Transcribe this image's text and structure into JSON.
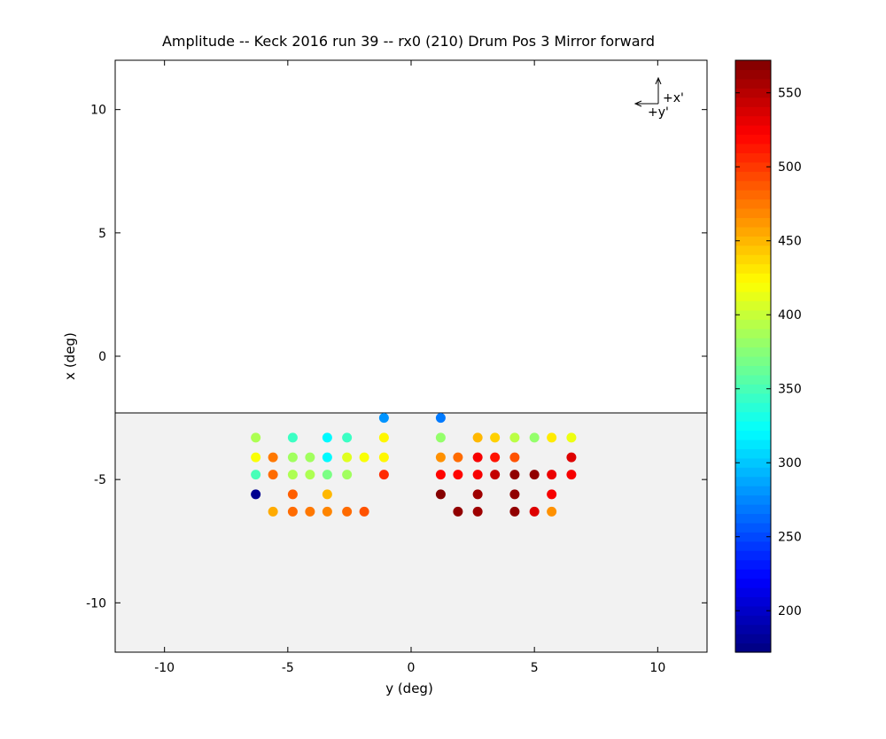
{
  "chart_data": {
    "type": "scatter",
    "title": "Amplitude -- Keck 2016 run 39 -- rx0 (210) Drum Pos 3 Mirror forward",
    "xlabel": "y (deg)",
    "ylabel": "x (deg)",
    "xlim": [
      -12,
      12
    ],
    "ylim": [
      -12,
      12
    ],
    "xticks": [
      "-10",
      "-5",
      "0",
      "5",
      "10"
    ],
    "yticks": [
      "10",
      "5",
      "0",
      "-5",
      "-10"
    ],
    "shaded_region": {
      "y_from": -12,
      "y_to": -2.3,
      "color": "#f2f2f2"
    },
    "orientation_marker": {
      "x_label": "+x'",
      "y_label": "+y'"
    },
    "colorbar": {
      "range": [
        172,
        572
      ],
      "ticks": [
        "200",
        "250",
        "300",
        "350",
        "400",
        "450",
        "500",
        "550"
      ],
      "colormap": "jet"
    },
    "points": [
      {
        "x": -1.1,
        "y": -2.5,
        "v": 280
      },
      {
        "x": 1.2,
        "y": -2.5,
        "v": 270
      },
      {
        "x": -6.3,
        "y": -3.3,
        "v": 390
      },
      {
        "x": -4.8,
        "y": -3.3,
        "v": 345
      },
      {
        "x": -3.4,
        "y": -3.3,
        "v": 320
      },
      {
        "x": -2.6,
        "y": -3.3,
        "v": 345
      },
      {
        "x": -1.1,
        "y": -3.3,
        "v": 425
      },
      {
        "x": 1.2,
        "y": -3.3,
        "v": 380
      },
      {
        "x": 2.7,
        "y": -3.3,
        "v": 450
      },
      {
        "x": 3.4,
        "y": -3.3,
        "v": 440
      },
      {
        "x": 4.2,
        "y": -3.3,
        "v": 395
      },
      {
        "x": 5.0,
        "y": -3.3,
        "v": 380
      },
      {
        "x": 5.7,
        "y": -3.3,
        "v": 430
      },
      {
        "x": 6.5,
        "y": -3.3,
        "v": 415
      },
      {
        "x": -6.3,
        "y": -4.1,
        "v": 420
      },
      {
        "x": -5.6,
        "y": -4.1,
        "v": 475
      },
      {
        "x": -4.8,
        "y": -4.1,
        "v": 385
      },
      {
        "x": -4.1,
        "y": -4.1,
        "v": 385
      },
      {
        "x": -3.4,
        "y": -4.1,
        "v": 320
      },
      {
        "x": -2.6,
        "y": -4.1,
        "v": 410
      },
      {
        "x": -1.9,
        "y": -4.1,
        "v": 420
      },
      {
        "x": -1.1,
        "y": -4.1,
        "v": 425
      },
      {
        "x": 1.2,
        "y": -4.1,
        "v": 465
      },
      {
        "x": 1.9,
        "y": -4.1,
        "v": 480
      },
      {
        "x": 2.7,
        "y": -4.1,
        "v": 525
      },
      {
        "x": 3.4,
        "y": -4.1,
        "v": 515
      },
      {
        "x": 4.2,
        "y": -4.1,
        "v": 490
      },
      {
        "x": 6.5,
        "y": -4.1,
        "v": 535
      },
      {
        "x": -6.3,
        "y": -4.8,
        "v": 350
      },
      {
        "x": -5.6,
        "y": -4.8,
        "v": 480
      },
      {
        "x": -4.8,
        "y": -4.8,
        "v": 390
      },
      {
        "x": -4.1,
        "y": -4.8,
        "v": 390
      },
      {
        "x": -3.4,
        "y": -4.8,
        "v": 370
      },
      {
        "x": -2.6,
        "y": -4.8,
        "v": 385
      },
      {
        "x": -1.1,
        "y": -4.8,
        "v": 505
      },
      {
        "x": 1.2,
        "y": -4.8,
        "v": 520
      },
      {
        "x": 1.9,
        "y": -4.8,
        "v": 520
      },
      {
        "x": 2.7,
        "y": -4.8,
        "v": 525
      },
      {
        "x": 3.4,
        "y": -4.8,
        "v": 545
      },
      {
        "x": 4.2,
        "y": -4.8,
        "v": 565
      },
      {
        "x": 5.0,
        "y": -4.8,
        "v": 565
      },
      {
        "x": 5.7,
        "y": -4.8,
        "v": 530
      },
      {
        "x": 6.5,
        "y": -4.8,
        "v": 525
      },
      {
        "x": -6.3,
        "y": -5.6,
        "v": 178
      },
      {
        "x": -4.8,
        "y": -5.6,
        "v": 485
      },
      {
        "x": -3.4,
        "y": -5.6,
        "v": 450
      },
      {
        "x": 1.2,
        "y": -5.6,
        "v": 570
      },
      {
        "x": 2.7,
        "y": -5.6,
        "v": 560
      },
      {
        "x": 4.2,
        "y": -5.6,
        "v": 565
      },
      {
        "x": 5.7,
        "y": -5.6,
        "v": 525
      },
      {
        "x": -5.6,
        "y": -6.3,
        "v": 455
      },
      {
        "x": -4.8,
        "y": -6.3,
        "v": 480
      },
      {
        "x": -4.1,
        "y": -6.3,
        "v": 475
      },
      {
        "x": -3.4,
        "y": -6.3,
        "v": 470
      },
      {
        "x": -2.6,
        "y": -6.3,
        "v": 480
      },
      {
        "x": -1.9,
        "y": -6.3,
        "v": 490
      },
      {
        "x": 1.9,
        "y": -6.3,
        "v": 565
      },
      {
        "x": 2.7,
        "y": -6.3,
        "v": 560
      },
      {
        "x": 4.2,
        "y": -6.3,
        "v": 565
      },
      {
        "x": 5.0,
        "y": -6.3,
        "v": 535
      },
      {
        "x": 5.7,
        "y": -6.3,
        "v": 465
      }
    ]
  }
}
